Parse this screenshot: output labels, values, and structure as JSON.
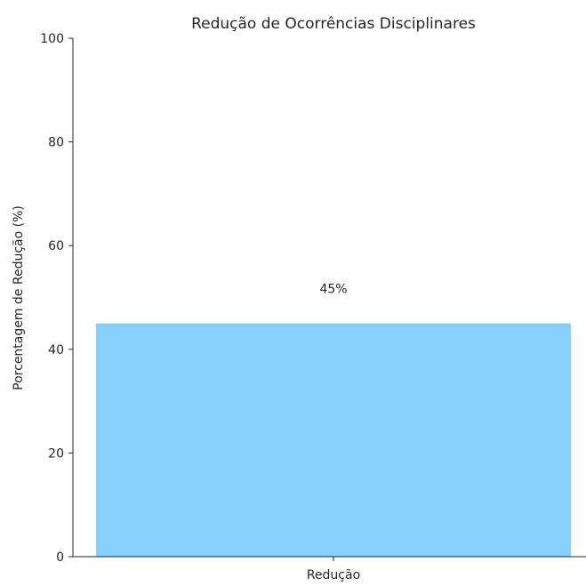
{
  "chart_data": {
    "type": "bar",
    "title": "Redução de Ocorrências Disciplinares",
    "xlabel": "",
    "ylabel": "Porcentagem de Redução (%)",
    "categories": [
      "Redução"
    ],
    "values": [
      45
    ],
    "data_labels": [
      "45%"
    ],
    "ylim": [
      0,
      100
    ],
    "yticks": [
      0,
      20,
      40,
      60,
      80,
      100
    ],
    "bar_color": "#87CEFA",
    "axis_color": "#262626",
    "grid": false,
    "spines": [
      "left",
      "bottom"
    ]
  }
}
